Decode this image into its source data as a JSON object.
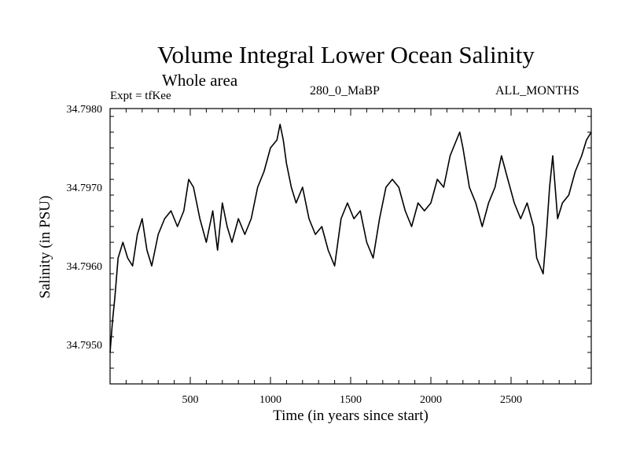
{
  "header": {
    "title": "Volume Integral Lower Ocean Salinity",
    "subtitle": "Whole area",
    "expt_label": "Expt = tfKee",
    "run_label": "280_0_MaBP",
    "months_label": "ALL_MONTHS"
  },
  "chart_data": {
    "type": "line",
    "title": "Volume Integral Lower Ocean Salinity",
    "subtitle": "Whole area",
    "xlabel": "Time (in years since start)",
    "ylabel": "Salinity (in PSU)",
    "xlim": [
      0,
      3000
    ],
    "ylim": [
      34.7945,
      34.798
    ],
    "x_ticks": [
      500,
      1000,
      1500,
      2000,
      2500
    ],
    "x_tick_labels": [
      "500",
      "1000",
      "1500",
      "2000",
      "2500"
    ],
    "y_ticks": [
      34.795,
      34.796,
      34.797,
      34.798
    ],
    "y_tick_labels": [
      "34.7950",
      "34.7960",
      "34.7970",
      "34.7980"
    ],
    "grid": false,
    "line_color": "#000000",
    "series": [
      {
        "x": [
          0,
          15,
          30,
          50,
          80,
          110,
          140,
          170,
          200,
          230,
          260,
          300,
          340,
          380,
          420,
          460,
          490,
          520,
          560,
          600,
          640,
          670,
          700,
          730,
          760,
          800,
          840,
          880,
          920,
          960,
          1000,
          1040,
          1060,
          1080,
          1100,
          1130,
          1160,
          1200,
          1240,
          1280,
          1320,
          1360,
          1400,
          1440,
          1480,
          1520,
          1560,
          1600,
          1640,
          1680,
          1720,
          1760,
          1800,
          1840,
          1880,
          1920,
          1960,
          2000,
          2040,
          2080,
          2120,
          2160,
          2180,
          2200,
          2240,
          2280,
          2320,
          2360,
          2400,
          2440,
          2480,
          2520,
          2560,
          2600,
          2640,
          2660,
          2680,
          2700,
          2720,
          2740,
          2760,
          2790,
          2820,
          2860,
          2900,
          2940,
          2970,
          3000
        ],
        "y": [
          34.7949,
          34.7953,
          34.7956,
          34.7961,
          34.7963,
          34.7961,
          34.796,
          34.7964,
          34.7966,
          34.7962,
          34.796,
          34.7964,
          34.7966,
          34.7967,
          34.7965,
          34.7967,
          34.7971,
          34.797,
          34.7966,
          34.7963,
          34.7967,
          34.7962,
          34.7968,
          34.7965,
          34.7963,
          34.7966,
          34.7964,
          34.7966,
          34.797,
          34.7972,
          34.7975,
          34.7976,
          34.7978,
          34.7976,
          34.7973,
          34.797,
          34.7968,
          34.797,
          34.7966,
          34.7964,
          34.7965,
          34.7962,
          34.796,
          34.7966,
          34.7968,
          34.7966,
          34.7967,
          34.7963,
          34.7961,
          34.7966,
          34.797,
          34.7971,
          34.797,
          34.7967,
          34.7965,
          34.7968,
          34.7967,
          34.7968,
          34.7971,
          34.797,
          34.7974,
          34.7976,
          34.7977,
          34.7975,
          34.797,
          34.7968,
          34.7965,
          34.7968,
          34.797,
          34.7974,
          34.7971,
          34.7968,
          34.7966,
          34.7968,
          34.7965,
          34.7961,
          34.796,
          34.7959,
          34.7964,
          34.797,
          34.7974,
          34.7966,
          34.7968,
          34.7969,
          34.7972,
          34.7974,
          34.7976,
          34.7977
        ]
      }
    ]
  },
  "placeholder_note": ""
}
